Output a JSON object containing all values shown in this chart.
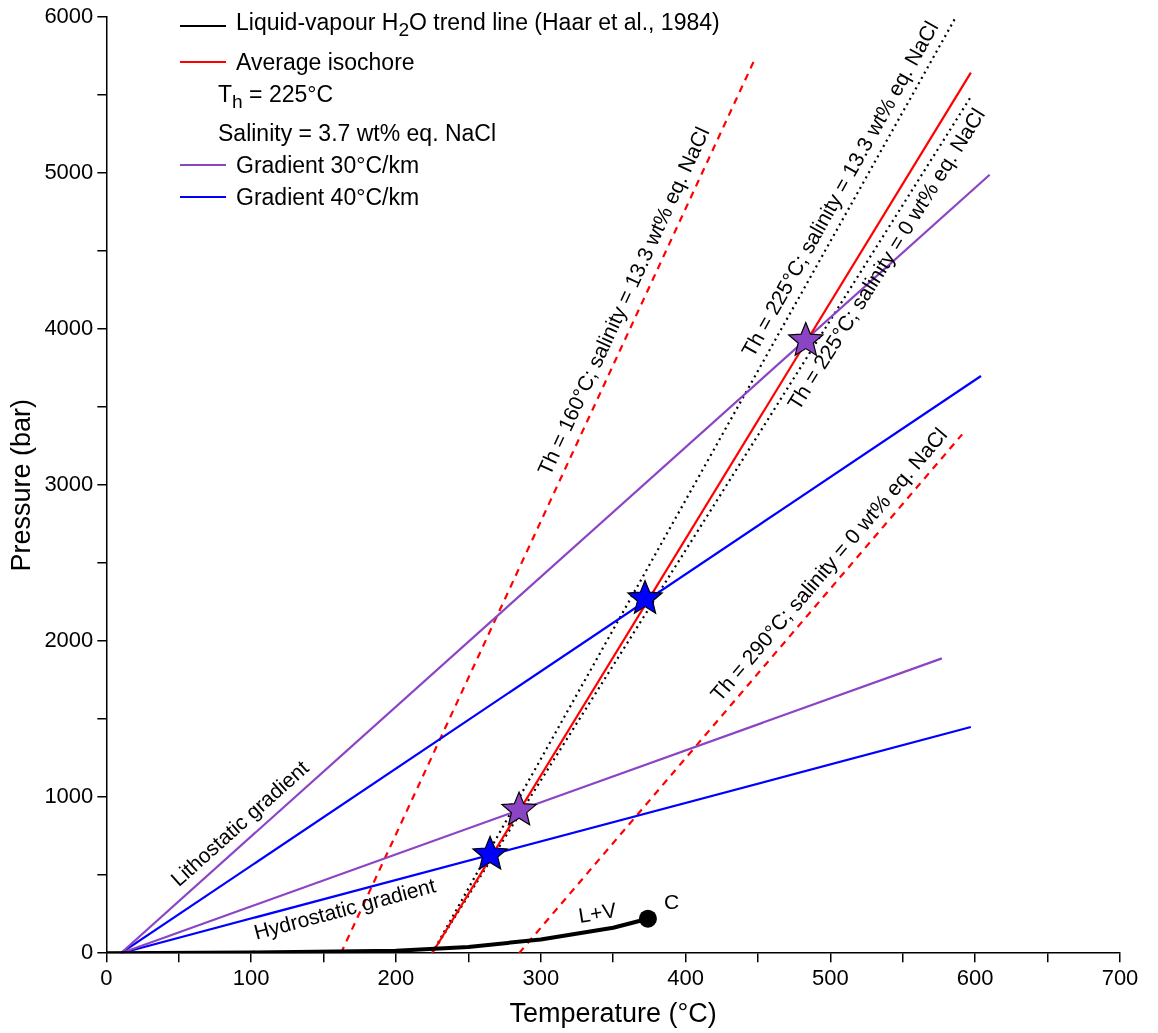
{
  "chart_data": {
    "type": "line",
    "xlabel": "Temperature (°C)",
    "ylabel": "Pressure (bar)",
    "xlim": [
      0,
      700
    ],
    "xticks": [
      0,
      {
        "value": 50,
        "label": null
      },
      100,
      {
        "value": 150,
        "label": null
      },
      200,
      {
        "value": 250,
        "label": null
      },
      300,
      {
        "value": 350,
        "label": null
      },
      400,
      {
        "value": 450,
        "label": null
      },
      500,
      {
        "value": 550,
        "label": null
      },
      600,
      {
        "value": 650,
        "label": null
      },
      700
    ],
    "ylim": [
      0,
      6000
    ],
    "yticks": [
      0,
      {
        "value": 500,
        "label": null
      },
      1000,
      {
        "value": 1500,
        "label": null
      },
      2000,
      {
        "value": 2500,
        "label": null
      },
      3000,
      {
        "value": 3500,
        "label": null
      },
      4000,
      {
        "value": 4500,
        "label": null
      },
      5000,
      {
        "value": 5500,
        "label": null
      },
      6000
    ],
    "grid": false,
    "legend": "top left",
    "marker": "none",
    "line_style": "solid",
    "series": [
      {
        "name": "Liquid-vapour H$_{2}$O trend line (Haar et al., 1984)",
        "color": "#000000",
        "x": [
          0,
          100,
          200,
          250,
          300,
          350,
          374
        ],
        "values": [
          0,
          5,
          16,
          40,
          88,
          163,
          221
        ]
      },
      {
        "name": "Average isochore",
        "color": "#ff0000",
        "x": [
          225,
          597
        ],
        "values": [
          0,
          5645
        ]
      },
      {
        "name": "Gradient 30°C/km",
        "color": "#8b44c4",
        "x": [
          10,
          610
        ],
        "values": [
          0,
          4990
        ]
      },
      {
        "color": "#8b44c4",
        "x": [
          10,
          577
        ],
        "values": [
          0,
          1890
        ]
      },
      {
        "name": "Gradient 40°C/km",
        "color": "#0000ff",
        "x": [
          10,
          604
        ],
        "values": [
          0,
          3700
        ]
      },
      {
        "color": "#0000ff",
        "x": [
          10,
          597
        ],
        "values": [
          0,
          1450
        ]
      },
      {
        "color": "#ff0000",
        "line_style": "dashed",
        "x": [
          162,
          448
        ],
        "values": [
          0,
          5735
        ]
      },
      {
        "color": "#000000",
        "line_style": "dotted",
        "x": [
          225,
          586
        ],
        "values": [
          0,
          5990
        ]
      },
      {
        "color": "#000000",
        "line_style": "dotted",
        "x": [
          225,
          597
        ],
        "values": [
          0,
          5490
        ]
      },
      {
        "color": "#ff0000",
        "line_style": "dashed",
        "x": [
          285,
          591
        ],
        "values": [
          0,
          3326
        ]
      },
      {
        "type": "scatter",
        "marker": "circle",
        "color": "#000000",
        "x": [
          374
        ],
        "values": [
          221
        ]
      },
      {
        "type": "scatter",
        "marker": "star",
        "color": "#8b44c4",
        "x": [
          483,
          285
        ],
        "values": [
          3927,
          917
        ]
      },
      {
        "type": "scatter",
        "marker": "star",
        "color": "#0000ff",
        "x": [
          372,
          265
        ],
        "values": [
          2273,
          633
        ]
      }
    ],
    "annotations": [
      "T$_{h}$ = 225°C",
      "Salinity = 3.7 wt% eq. NaCl",
      {
        "text": "Th = 160°C; salinity = 13.3 wt% eq. NaCl",
        "x": 368,
        "y": 4134
      },
      {
        "text": "Th = 225°C; salinity = 13.3 wt% eq. NaCl",
        "x": 517,
        "y": 4844
      },
      {
        "text": "Th = 225°C; salinity = 0 wt% eq. NaCl",
        "x": 530,
        "y": 4500
      },
      {
        "text": "Th = 290°C; salinity = 0 wt% eq. NaCl",
        "x": 508,
        "y": 2420
      },
      {
        "text": "Lithostatic gradient",
        "x": 100,
        "y": 749
      },
      {
        "text": "Hydrostatic gradient",
        "x": 162,
        "y": 375
      },
      {
        "text": "L+V",
        "x": 341,
        "y": 149
      },
      {
        "text": "C",
        "x": 374,
        "y": 221
      }
    ]
  }
}
